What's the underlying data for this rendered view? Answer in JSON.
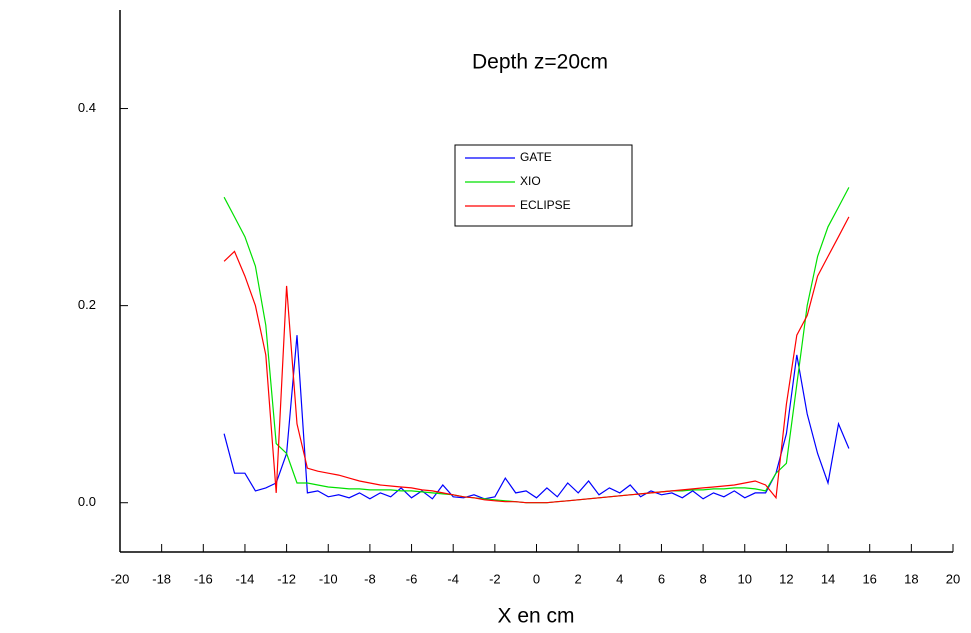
{
  "chart_data": {
    "type": "line",
    "title": "Depth z=20cm",
    "x_label": "X en cm",
    "x": [
      -15,
      -14.5,
      -14,
      -13.5,
      -13,
      -12.5,
      -12,
      -11.5,
      -11,
      -10.5,
      -10,
      -9.5,
      -9,
      -8.5,
      -8,
      -7.5,
      -7,
      -6.5,
      -6,
      -5.5,
      -5,
      -4.5,
      -4,
      -3.5,
      -3,
      -2.5,
      -2,
      -1.5,
      -1,
      -0.5,
      0,
      0.5,
      1,
      1.5,
      2,
      2.5,
      3,
      3.5,
      4,
      4.5,
      5,
      5.5,
      6,
      6.5,
      7,
      7.5,
      8,
      8.5,
      9,
      9.5,
      10,
      10.5,
      11,
      11.5,
      12,
      12.5,
      13,
      13.5,
      14,
      14.5,
      15
    ],
    "series": [
      {
        "name": "GATE",
        "color": "#0000ff",
        "values": [
          0.07,
          0.03,
          0.03,
          0.012,
          0.015,
          0.02,
          0.05,
          0.17,
          0.01,
          0.012,
          0.006,
          0.008,
          0.005,
          0.01,
          0.004,
          0.01,
          0.006,
          0.015,
          0.005,
          0.012,
          0.004,
          0.018,
          0.006,
          0.005,
          0.008,
          0.004,
          0.006,
          0.025,
          0.01,
          0.012,
          0.005,
          0.015,
          0.006,
          0.02,
          0.01,
          0.022,
          0.008,
          0.015,
          0.01,
          0.018,
          0.006,
          0.012,
          0.008,
          0.01,
          0.005,
          0.012,
          0.004,
          0.01,
          0.006,
          0.012,
          0.005,
          0.01,
          0.01,
          0.03,
          0.07,
          0.15,
          0.09,
          0.05,
          0.02,
          0.08,
          0.055
        ]
      },
      {
        "name": "XIO",
        "color": "#00e000",
        "values": [
          0.31,
          0.29,
          0.27,
          0.24,
          0.18,
          0.06,
          0.05,
          0.02,
          0.02,
          0.018,
          0.016,
          0.015,
          0.014,
          0.014,
          0.013,
          0.013,
          0.013,
          0.012,
          0.012,
          0.011,
          0.01,
          0.009,
          0.008,
          0.006,
          0.005,
          0.004,
          0.003,
          0.002,
          0.001,
          0.0,
          0.0,
          0.0,
          0.001,
          0.002,
          0.003,
          0.004,
          0.005,
          0.006,
          0.007,
          0.008,
          0.009,
          0.01,
          0.011,
          0.012,
          0.012,
          0.013,
          0.013,
          0.014,
          0.014,
          0.015,
          0.015,
          0.014,
          0.012,
          0.03,
          0.04,
          0.12,
          0.2,
          0.25,
          0.28,
          0.3,
          0.32
        ]
      },
      {
        "name": "ECLIPSE",
        "color": "#ff0000",
        "values": [
          0.245,
          0.255,
          0.23,
          0.2,
          0.15,
          0.01,
          0.22,
          0.08,
          0.035,
          0.032,
          0.03,
          0.028,
          0.025,
          0.022,
          0.02,
          0.018,
          0.017,
          0.016,
          0.015,
          0.013,
          0.012,
          0.01,
          0.008,
          0.006,
          0.005,
          0.003,
          0.002,
          0.001,
          0.001,
          0.0,
          0.0,
          0.0,
          0.001,
          0.002,
          0.003,
          0.004,
          0.005,
          0.006,
          0.007,
          0.008,
          0.009,
          0.01,
          0.011,
          0.012,
          0.013,
          0.014,
          0.015,
          0.016,
          0.017,
          0.018,
          0.02,
          0.022,
          0.018,
          0.005,
          0.1,
          0.17,
          0.19,
          0.23,
          0.25,
          0.27,
          0.29
        ]
      }
    ],
    "xlim": [
      -20,
      20
    ],
    "xticks": [
      -20,
      -18,
      -16,
      -14,
      -12,
      -10,
      -8,
      -6,
      -4,
      -2,
      0,
      2,
      4,
      6,
      8,
      10,
      12,
      14,
      16,
      18,
      20
    ],
    "ylim": [
      -0.05,
      0.5
    ],
    "yticks": [
      {
        "value": 0,
        "label": "0.0"
      },
      {
        "value": 0.2,
        "label": "0.2"
      },
      {
        "value": 0.4,
        "label": "0.4"
      }
    ],
    "legend": "top-center",
    "grid": false
  }
}
